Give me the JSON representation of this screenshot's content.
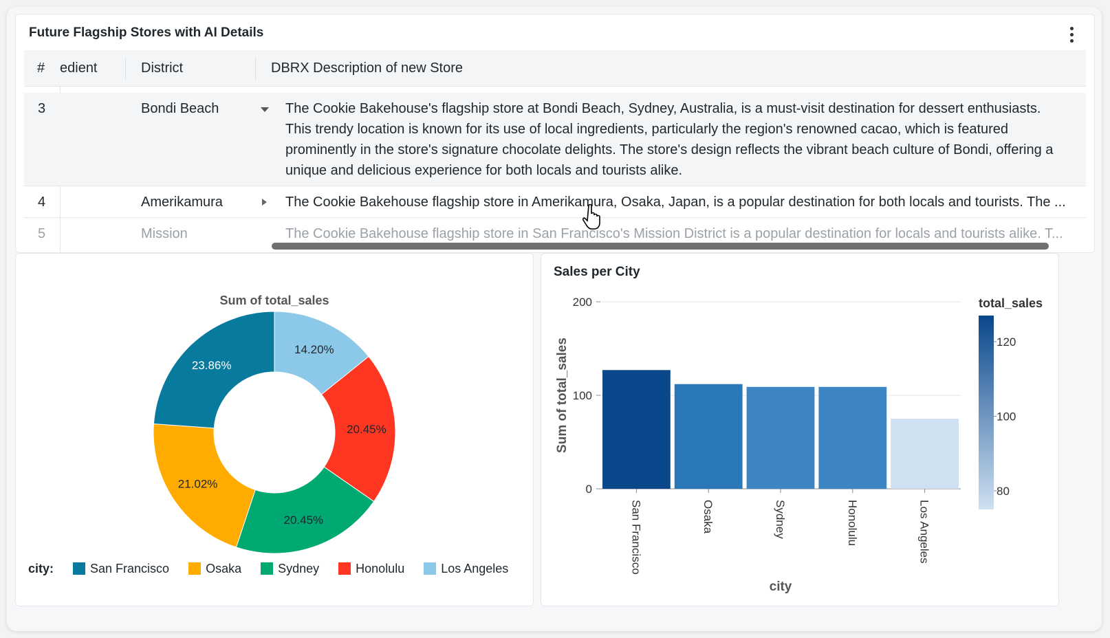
{
  "table_widget": {
    "title": "Future Flagship Stores with AI Details",
    "menu_icon": "kebab-menu-icon",
    "columns": [
      "#",
      "edient",
      "District",
      "DBRX Description of new Store"
    ],
    "rows": [
      {
        "num": "3",
        "district": "Bondi Beach",
        "expanded": true,
        "lines": [
          "The Cookie Bakehouse's flagship store at Bondi Beach, Sydney, Australia, is a must-visit destination for dessert enthusiasts.",
          "This trendy location is known for its use of local ingredients, particularly the region's renowned cacao, which is featured",
          "prominently in the store's signature chocolate delights. The store's design reflects the vibrant beach culture of Bondi, offering a",
          "unique and delicious experience for both locals and tourists alike."
        ]
      },
      {
        "num": "4",
        "district": "Amerikamura",
        "expanded": false,
        "description": "The Cookie Bakehouse flagship store in Amerikamura, Osaka, Japan, is a popular destination for both locals and tourists. The ..."
      },
      {
        "num": "5",
        "district": "Mission",
        "expanded": false,
        "description": "The Cookie Bakehouse flagship store in San Francisco's Mission District is a popular destination for locals and tourists alike. T..."
      }
    ]
  },
  "pie_widget": {
    "chart_data": {
      "type": "pie",
      "title": "Sum of total_sales",
      "legend_label": "city:",
      "legend_position": "bottom",
      "slices": [
        {
          "name": "Los Angeles",
          "value": 14.2,
          "label": "14.20%",
          "color": "#8cc9e8"
        },
        {
          "name": "Honolulu",
          "value": 20.45,
          "label": "20.45%",
          "color": "#ff3621"
        },
        {
          "name": "Sydney",
          "value": 20.45,
          "label": "20.45%",
          "color": "#00a972"
        },
        {
          "name": "Osaka",
          "value": 21.02,
          "label": "21.02%",
          "color": "#ffab00"
        },
        {
          "name": "San Francisco",
          "value": 23.86,
          "label": "23.86%",
          "color": "#077a9d"
        }
      ],
      "legend_order": [
        "San Francisco",
        "Osaka",
        "Sydney",
        "Honolulu",
        "Los Angeles"
      ]
    }
  },
  "bar_widget": {
    "title": "Sales per City",
    "chart_data": {
      "type": "bar",
      "categories": [
        "San Francisco",
        "Osaka",
        "Sydney",
        "Honolulu",
        "Los Angeles"
      ],
      "values": [
        127,
        112,
        109,
        109,
        75
      ],
      "xlabel": "city",
      "ylabel": "Sum of total_sales",
      "ylim": [
        0,
        200
      ],
      "yticks": [
        0,
        100,
        200
      ],
      "colors": [
        "#0a478b",
        "#2a78b8",
        "#3d86c3",
        "#3d86c3",
        "#cfe0f1"
      ],
      "grid": true,
      "color_legend": {
        "title": "total_sales",
        "ticks": [
          120,
          100,
          80
        ],
        "range": [
          75,
          127
        ],
        "color_low": "#cfe0f1",
        "color_high": "#0a478b",
        "position": "right"
      }
    }
  }
}
